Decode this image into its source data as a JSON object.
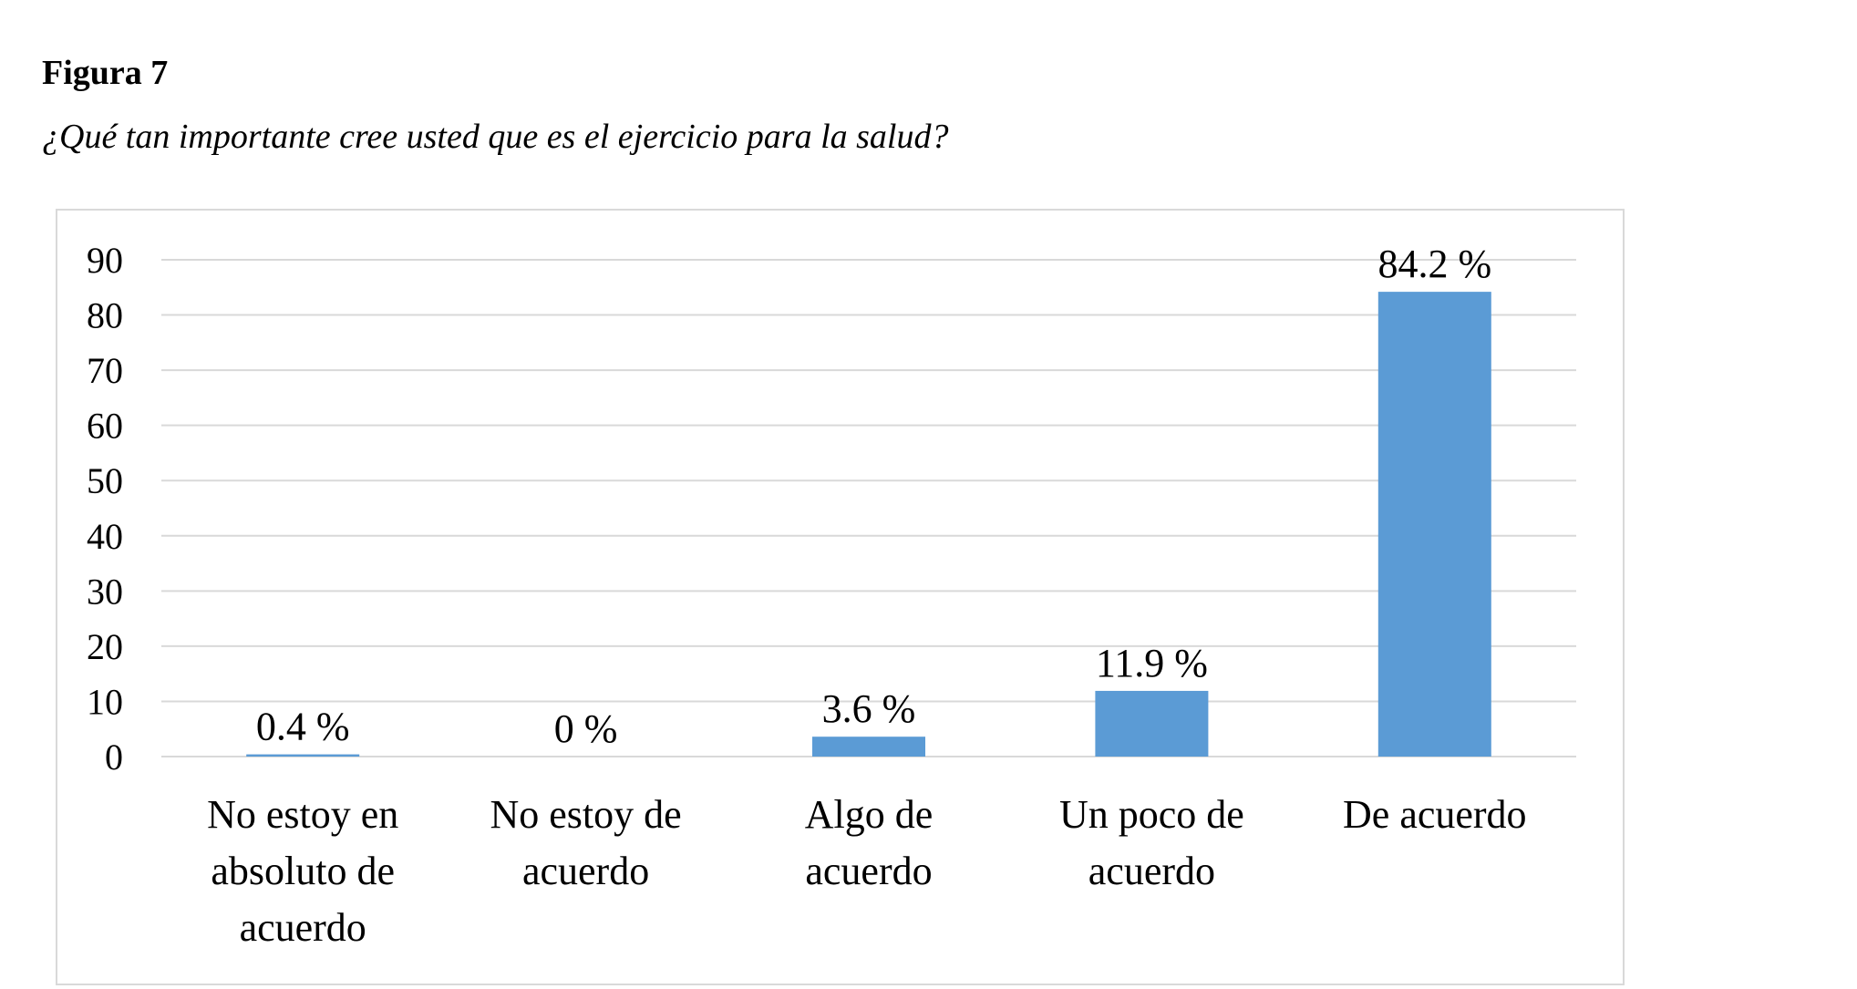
{
  "figure": {
    "label": "Figura 7",
    "title": "¿Qué tan importante cree usted que es el ejercicio para la salud?"
  },
  "chart_data": {
    "type": "bar",
    "categories": [
      [
        "No estoy en",
        "absoluto de",
        "acuerdo"
      ],
      [
        "No estoy de",
        "acuerdo"
      ],
      [
        "Algo de",
        "acuerdo"
      ],
      [
        "Un poco de",
        "acuerdo"
      ],
      [
        "De acuerdo"
      ]
    ],
    "values": [
      0.4,
      0,
      3.6,
      11.9,
      84.2
    ],
    "data_labels": [
      "0.4 %",
      "0 %",
      "3.6 %",
      "11.9 %",
      "84.2 %"
    ],
    "yticks": [
      0,
      10,
      20,
      30,
      40,
      50,
      60,
      70,
      80,
      90
    ],
    "ylim": [
      0,
      90
    ],
    "grid": true,
    "legend": "none",
    "bar_color": "#5B9BD5",
    "grid_color": "#D9D9D9",
    "border_color": "#D9D9D9"
  }
}
